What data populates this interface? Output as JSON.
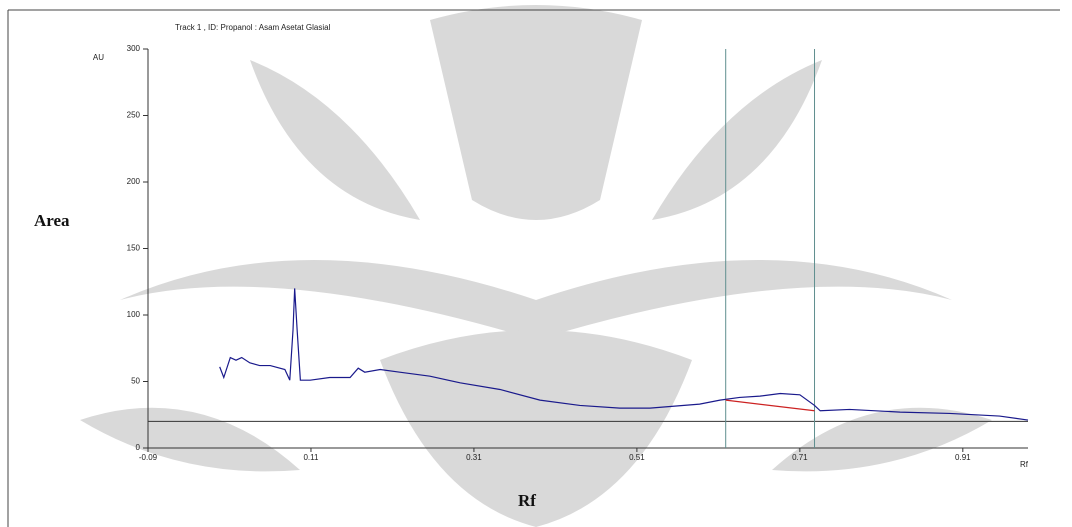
{
  "chart_data": {
    "type": "line",
    "title": "Track 1 , ID: Propanol : Asam Asetat Glasial",
    "y_unit": "AU",
    "x_unit": "Rf",
    "y_axis_label": "Area",
    "x_axis_label": "Rf",
    "xlim": [
      -0.09,
      0.99
    ],
    "ylim": [
      0,
      300
    ],
    "xticks": [
      -0.09,
      0.11,
      0.31,
      0.51,
      0.71,
      0.91
    ],
    "yticks": [
      0,
      50,
      100,
      150,
      200,
      250,
      300
    ],
    "series": [
      {
        "color": "#1a1a8c",
        "x": [
          -0.002,
          0.003,
          0.011,
          0.018,
          0.025,
          0.035,
          0.047,
          0.06,
          0.078,
          0.084,
          0.088,
          0.09,
          0.093,
          0.097,
          0.109,
          0.133,
          0.158,
          0.168,
          0.176,
          0.195,
          0.219,
          0.256,
          0.293,
          0.342,
          0.391,
          0.44,
          0.489,
          0.526,
          0.587,
          0.612,
          0.636,
          0.661,
          0.686,
          0.71,
          0.728,
          0.735,
          0.771,
          0.833,
          0.894,
          0.955,
          0.99
        ],
        "values": [
          61,
          53,
          68,
          66,
          68,
          64,
          62,
          62,
          59,
          51,
          89,
          120,
          89,
          51,
          51,
          53,
          53,
          60,
          57,
          59,
          57,
          54,
          49,
          44,
          36,
          32,
          30,
          30,
          33,
          36,
          38,
          39,
          41,
          40,
          32,
          28,
          29,
          27,
          26,
          24,
          21
        ]
      },
      {
        "color": "#cc2222",
        "x": [
          0.619,
          0.728
        ],
        "values": [
          36,
          28
        ]
      }
    ],
    "baseline": 20,
    "markers": [
      0.619,
      0.728
    ],
    "marker_color": "#5f8f8f"
  }
}
